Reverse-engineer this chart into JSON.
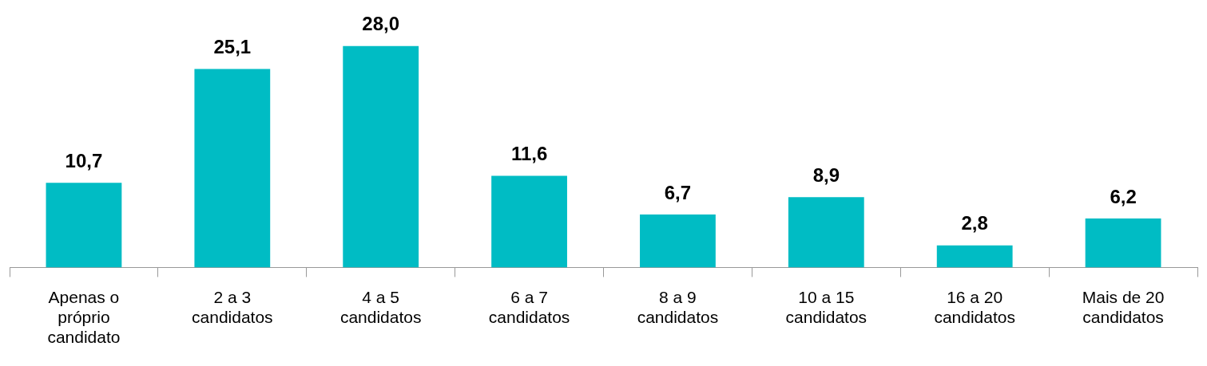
{
  "chart_data": {
    "type": "bar",
    "categories": [
      "Apenas o próprio candidato",
      "2 a 3 candidatos",
      "4 a 5 candidatos",
      "6 a 7 candidatos",
      "8 a 9 candidatos",
      "10 a 15 candidatos",
      "16 a 20 candidatos",
      "Mais de 20 candidatos"
    ],
    "values": [
      10.7,
      25.1,
      28.0,
      11.6,
      6.7,
      8.9,
      2.8,
      6.2
    ],
    "value_labels": [
      "10,7",
      "25,1",
      "28,0",
      "11,6",
      "6,7",
      "8,9",
      "2,8",
      "6,2"
    ],
    "color": "#00bcc4",
    "grid": false,
    "legend": false
  }
}
